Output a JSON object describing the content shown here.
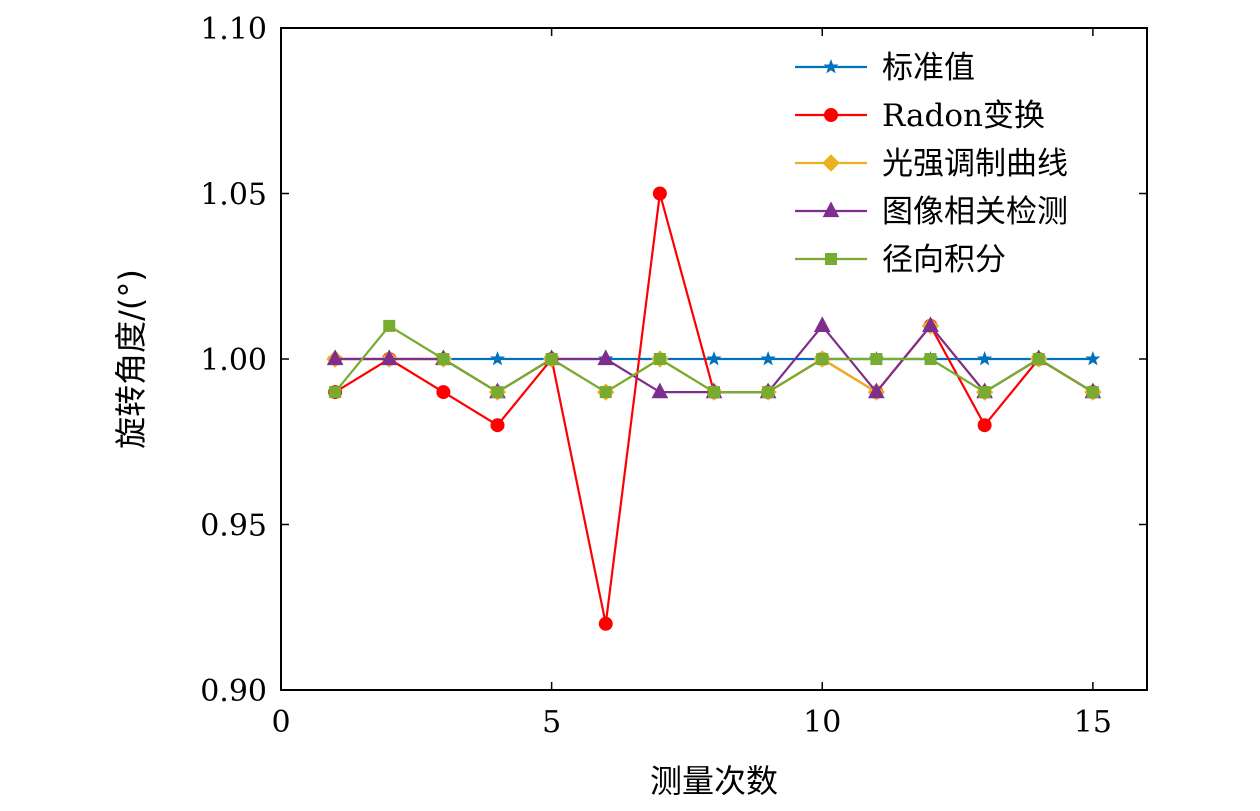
{
  "chart_data": {
    "type": "line",
    "title": "",
    "xlabel": "测量次数",
    "ylabel": "旋转角度/(°)",
    "xlim": [
      0,
      16
    ],
    "ylim": [
      0.9,
      1.1
    ],
    "x_ticks": [
      0,
      5,
      10,
      15
    ],
    "y_ticks": [
      0.9,
      0.95,
      1.0,
      1.05,
      1.1
    ],
    "x_tick_labels": [
      "0",
      "5",
      "10",
      "15"
    ],
    "y_tick_labels": [
      "0.90",
      "0.95",
      "1.00",
      "1.05",
      "1.10"
    ],
    "grid": false,
    "legend_position": "top-right",
    "x": [
      1,
      2,
      3,
      4,
      5,
      6,
      7,
      8,
      9,
      10,
      11,
      12,
      13,
      14,
      15
    ],
    "series": [
      {
        "name": "标准值",
        "color": "#0072BD",
        "marker": "star",
        "values": [
          1.0,
          1.0,
          1.0,
          1.0,
          1.0,
          1.0,
          1.0,
          1.0,
          1.0,
          1.0,
          1.0,
          1.0,
          1.0,
          1.0,
          1.0
        ]
      },
      {
        "name": "Radon变换",
        "color": "#FF0000",
        "marker": "circle",
        "values": [
          0.99,
          1.0,
          0.99,
          0.98,
          1.0,
          0.92,
          1.05,
          0.99,
          0.99,
          1.0,
          0.99,
          1.01,
          0.98,
          1.0,
          0.99
        ]
      },
      {
        "name": "光强调制曲线",
        "color": "#EDB120",
        "marker": "diamond",
        "values": [
          1.0,
          1.0,
          1.0,
          0.99,
          1.0,
          0.99,
          1.0,
          0.99,
          0.99,
          1.0,
          0.99,
          1.01,
          0.99,
          1.0,
          0.99
        ]
      },
      {
        "name": "图像相关检测",
        "color": "#7E2F8E",
        "marker": "triangle",
        "values": [
          1.0,
          1.0,
          1.0,
          0.99,
          1.0,
          1.0,
          0.99,
          0.99,
          0.99,
          1.01,
          0.99,
          1.01,
          0.99,
          1.0,
          0.99
        ]
      },
      {
        "name": "径向积分",
        "color": "#77AC30",
        "marker": "square",
        "values": [
          0.99,
          1.01,
          1.0,
          0.99,
          1.0,
          0.99,
          1.0,
          0.99,
          0.99,
          1.0,
          1.0,
          1.0,
          0.99,
          1.0,
          0.99
        ]
      }
    ]
  }
}
